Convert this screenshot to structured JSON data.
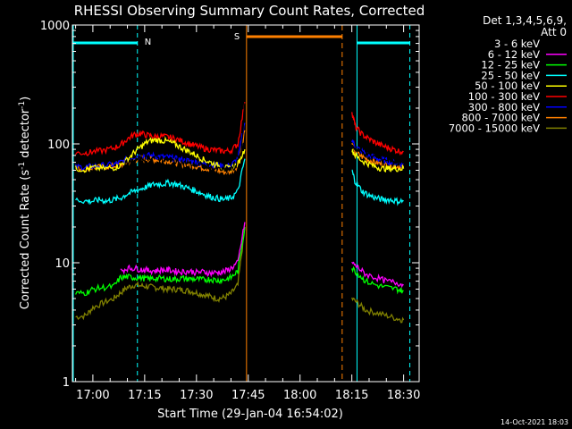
{
  "chart_data": {
    "type": "line",
    "title": "RHESSI Observing Summary Count Rates, Corrected",
    "xlabel": "Start Time (29-Jan-04 16:54:02)",
    "ylabel_main": "Corrected Count Rate (s",
    "ylabel_sup1": "-1",
    "ylabel_mid": " detector",
    "ylabel_sup2": "-1",
    "ylabel_end": ")",
    "footer": "14-Oct-2021 18:03",
    "x_ticks": [
      "17:00",
      "17:15",
      "17:30",
      "17:45",
      "18:00",
      "18:15",
      "18:30"
    ],
    "x_tick_minutes": [
      0,
      15,
      30,
      45,
      60,
      75,
      90
    ],
    "x_range_minutes": [
      -5.93,
      94.5
    ],
    "y_scale": "log",
    "ylim": [
      1,
      1000
    ],
    "y_ticks": [
      {
        "label": "1",
        "value": 1
      },
      {
        "label": "10",
        "value": 10
      },
      {
        "label": "100",
        "value": 100
      },
      {
        "label": "1000",
        "value": 1000
      }
    ],
    "legend_header_1": "Det 1,3,4,5,6,9,",
    "legend_header_2": "Att 0",
    "legend_position": "right",
    "markers": {
      "night_label": "N",
      "saa_label": "S",
      "night_minutes": [
        12.9,
        76.5,
        91.8
      ],
      "saa_start_minutes": 44.5,
      "saa_end_minutes": 72.2
    },
    "series": [
      {
        "name": "3 - 6 keV",
        "color": "#000000",
        "x": [
          9,
          11,
          13,
          15,
          17,
          19,
          21,
          23,
          25,
          27,
          29,
          31,
          33,
          35,
          37,
          39,
          41,
          43,
          44,
          75,
          76,
          78,
          80,
          83,
          86,
          88,
          90
        ],
        "y": [
          68,
          70,
          74,
          76,
          77,
          76,
          74,
          72,
          70,
          69,
          67,
          66,
          64,
          62,
          61,
          60,
          62,
          85,
          220,
          95,
          92,
          85,
          80,
          76,
          73,
          71,
          69
        ]
      },
      {
        "name": "6 - 12 keV",
        "color": "#ff00ff",
        "x": [
          8,
          10,
          12,
          14,
          16,
          18,
          20,
          22,
          24,
          26,
          28,
          30,
          32,
          34,
          36,
          38,
          40,
          42,
          44,
          75,
          77,
          79,
          82,
          85,
          88,
          90
        ],
        "y": [
          8.5,
          9,
          9,
          8.8,
          8.6,
          8.6,
          8.7,
          8.7,
          8.5,
          8.4,
          8.5,
          8.3,
          8.4,
          8.2,
          8.3,
          8.4,
          9,
          10,
          22,
          10,
          9,
          8,
          7.5,
          7,
          6.8,
          6.5
        ]
      },
      {
        "name": "12 - 25 keV",
        "color": "#00ff00",
        "x": [
          -5,
          -2,
          0,
          3,
          6,
          8,
          10,
          12,
          14,
          16,
          18,
          20,
          22,
          24,
          26,
          28,
          30,
          32,
          34,
          36,
          38,
          40,
          42,
          44,
          75,
          77,
          79,
          82,
          85,
          88,
          90
        ],
        "y": [
          5.5,
          5.6,
          6,
          6.2,
          6.3,
          7.5,
          7.6,
          7.5,
          7.5,
          7.3,
          7.4,
          7.4,
          7.3,
          7.3,
          7.4,
          7.3,
          7.3,
          7.2,
          7.3,
          7.1,
          7.2,
          7.5,
          8.5,
          20,
          9,
          8,
          7,
          6.5,
          6.2,
          6,
          5.8
        ]
      },
      {
        "name": "25 - 50 keV",
        "color": "#00ffff",
        "x": [
          -5,
          -2,
          0,
          2,
          4,
          6,
          8,
          10,
          12,
          14,
          16,
          18,
          20,
          22,
          24,
          26,
          28,
          30,
          32,
          34,
          36,
          38,
          40,
          42,
          44,
          75,
          76,
          78,
          80,
          82,
          84,
          86,
          88,
          90
        ],
        "y": [
          34,
          33,
          33,
          34,
          33,
          34,
          35,
          38,
          40,
          42,
          44,
          46,
          46,
          47,
          46,
          44,
          42,
          40,
          38,
          36,
          35,
          34,
          35,
          40,
          75,
          60,
          48,
          40,
          37,
          35,
          34,
          34,
          33,
          33
        ]
      },
      {
        "name": "50 - 100 keV",
        "color": "#ffff00",
        "x": [
          -5,
          -2,
          0,
          3,
          6,
          8,
          10,
          12,
          14,
          16,
          18,
          20,
          22,
          24,
          26,
          28,
          30,
          32,
          34,
          36,
          38,
          40,
          42,
          44,
          75,
          76,
          78,
          80,
          82,
          84,
          86,
          88,
          90
        ],
        "y": [
          62,
          61,
          63,
          62,
          63,
          66,
          74,
          85,
          95,
          105,
          108,
          107,
          104,
          99,
          92,
          86,
          80,
          74,
          70,
          66,
          63,
          62,
          68,
          90,
          90,
          80,
          72,
          68,
          64,
          62,
          62,
          62,
          62
        ]
      },
      {
        "name": "100 - 300 keV",
        "color": "#ff0000",
        "x": [
          -5,
          -2,
          0,
          3,
          6,
          8,
          10,
          12,
          14,
          16,
          18,
          20,
          22,
          24,
          26,
          28,
          30,
          32,
          34,
          36,
          38,
          40,
          42,
          44,
          75,
          76,
          78,
          80,
          82,
          84,
          86,
          88,
          90
        ],
        "y": [
          84,
          84,
          86,
          88,
          92,
          98,
          110,
          120,
          122,
          118,
          115,
          116,
          114,
          110,
          105,
          100,
          96,
          92,
          90,
          88,
          87,
          88,
          100,
          225,
          190,
          140,
          120,
          110,
          102,
          96,
          92,
          88,
          86
        ]
      },
      {
        "name": "300 - 800 keV",
        "color": "#0000ff",
        "x": [
          -5,
          -2,
          0,
          3,
          6,
          8,
          10,
          12,
          14,
          16,
          18,
          20,
          22,
          24,
          26,
          28,
          30,
          32,
          34,
          36,
          38,
          40,
          42,
          44,
          75,
          76,
          78,
          80,
          82,
          84,
          86,
          88,
          90
        ],
        "y": [
          64,
          64,
          65,
          66,
          67,
          70,
          74,
          78,
          80,
          80,
          79,
          78,
          77,
          75,
          73,
          72,
          70,
          68,
          67,
          66,
          65,
          66,
          75,
          150,
          110,
          95,
          86,
          80,
          76,
          73,
          71,
          69,
          68
        ]
      },
      {
        "name": "800 - 7000 keV",
        "color": "#ff8000",
        "x": [
          -5,
          -2,
          0,
          3,
          6,
          8,
          10,
          12,
          14,
          16,
          18,
          20,
          22,
          24,
          26,
          28,
          30,
          32,
          34,
          36,
          38,
          40,
          42,
          44,
          75,
          76,
          78,
          80,
          82,
          84,
          86,
          88,
          90
        ],
        "y": [
          62,
          62,
          63,
          64,
          65,
          67,
          70,
          73,
          75,
          75,
          74,
          73,
          72,
          70,
          68,
          67,
          65,
          63,
          62,
          60,
          58,
          59,
          66,
          130,
          100,
          85,
          78,
          73,
          70,
          67,
          66,
          65,
          64
        ]
      },
      {
        "name": "7000 - 15000 keV",
        "color": "#808000",
        "x": [
          -5,
          -2,
          0,
          3,
          6,
          8,
          10,
          12,
          14,
          16,
          18,
          20,
          22,
          24,
          26,
          28,
          30,
          32,
          34,
          36,
          38,
          40,
          42,
          44,
          75,
          77,
          79,
          82,
          85,
          88,
          90
        ],
        "y": [
          3.5,
          3.6,
          4.2,
          4.6,
          5,
          5.6,
          6.2,
          6.5,
          6.4,
          6.3,
          6.2,
          6.1,
          6,
          6,
          5.9,
          5.8,
          5.6,
          5.4,
          5.2,
          5,
          5.1,
          5.5,
          6.5,
          20,
          5,
          4.5,
          4,
          3.8,
          3.6,
          3.4,
          3.3
        ]
      }
    ]
  }
}
